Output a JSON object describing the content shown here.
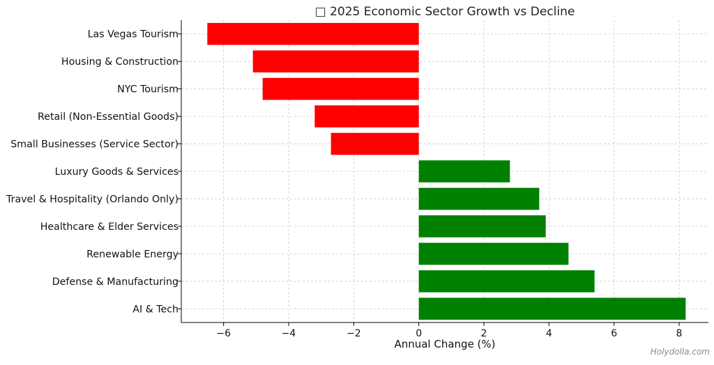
{
  "chart_data": {
    "type": "bar",
    "orientation": "horizontal",
    "title": "□ 2025 Economic Sector Growth vs Decline",
    "xlabel": "Annual Change (%)",
    "ylabel": "",
    "categories": [
      "Las Vegas Tourism",
      "Housing & Construction",
      "NYC Tourism",
      "Retail (Non-Essential Goods)",
      "Small Businesses (Service Sector)",
      "Luxury Goods & Services",
      "Travel & Hospitality (Orlando Only)",
      "Healthcare & Elder Services",
      "Renewable Energy",
      "Defense & Manufacturing",
      "AI & Tech"
    ],
    "values": [
      -6.5,
      -5.1,
      -4.8,
      -3.2,
      -2.7,
      2.8,
      3.7,
      3.9,
      4.6,
      5.4,
      8.2
    ],
    "xlim": [
      -7.3,
      8.9
    ],
    "xticks": [
      -6,
      -4,
      -2,
      0,
      2,
      4,
      6,
      8
    ],
    "xtick_labels": [
      "−6",
      "−4",
      "−2",
      "0",
      "2",
      "4",
      "6",
      "8"
    ],
    "grid": true,
    "colors": {
      "negative": "#ff0000",
      "positive": "#008000"
    }
  },
  "watermark": "Holydolla.com"
}
